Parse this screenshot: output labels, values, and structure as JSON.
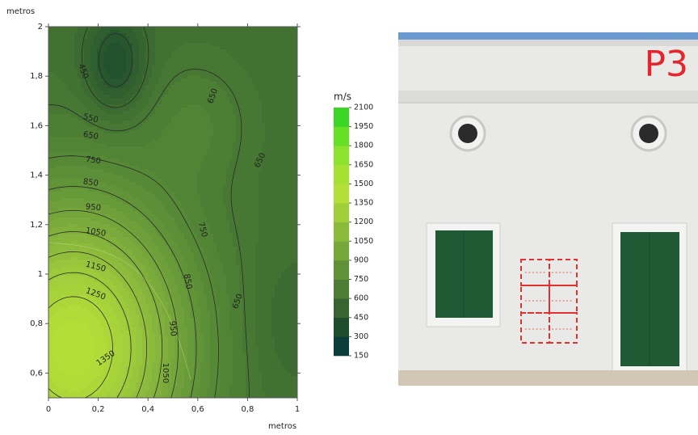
{
  "chart_data": {
    "type": "contour",
    "ylabel": "metros",
    "xlabel": "metros",
    "xlim": [
      0,
      1
    ],
    "ylim": [
      0.5,
      2
    ],
    "xticks": [
      0,
      {
        "value": 0.2,
        "label": "0,2"
      },
      {
        "value": 0.4,
        "label": "0,4"
      },
      {
        "value": 0.6,
        "label": "0,6"
      },
      {
        "value": 0.8,
        "label": "0,8"
      },
      1
    ],
    "yticks": [
      {
        "value": 0.6,
        "label": "0,6"
      },
      {
        "value": 0.8,
        "label": "0,8"
      },
      1,
      {
        "value": 1.2,
        "label": "1,2"
      },
      {
        "value": 1.4,
        "label": "1,4"
      },
      {
        "value": 1.6,
        "label": "1,6"
      },
      {
        "value": 1.8,
        "label": "1,8"
      },
      2
    ],
    "contour_labels": [
      450,
      550,
      650,
      750,
      850,
      950,
      1050,
      1150,
      1250,
      1350,
      650,
      650,
      750,
      850,
      950,
      1050,
      650
    ],
    "colorbar": {
      "label": "m/s",
      "ticks": [
        150,
        300,
        450,
        600,
        750,
        900,
        1050,
        1200,
        1350,
        1500,
        1650,
        1800,
        1950,
        2100
      ],
      "colors": [
        "#0b3d3a",
        "#1e4d2e",
        "#36652f",
        "#4b7e34",
        "#5f9238",
        "#76a73b",
        "#8cbb3c",
        "#a1ce3b",
        "#b4de38",
        "#a6e032",
        "#8ce22c",
        "#66df27",
        "#3ad526"
      ]
    }
  },
  "photo": {
    "label": "P3"
  }
}
